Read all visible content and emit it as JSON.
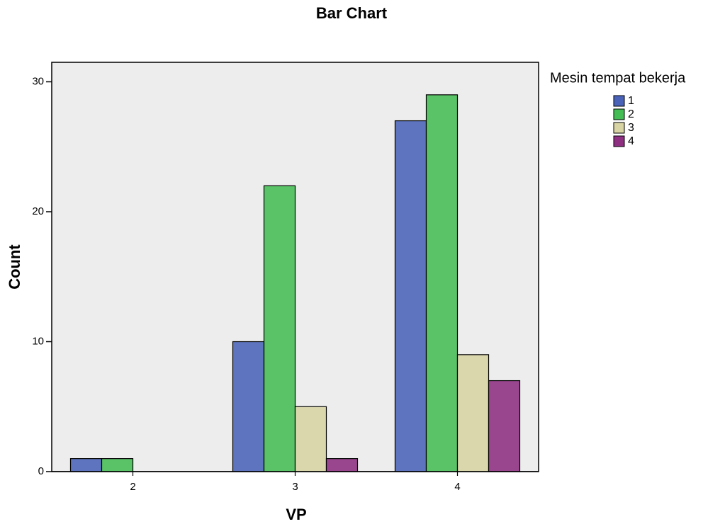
{
  "chart_data": {
    "type": "bar",
    "title": "Bar Chart",
    "x_label": "VP",
    "y_label": "Count",
    "categories": [
      "2",
      "3",
      "4"
    ],
    "series": [
      {
        "name": "1",
        "color": "#4a63b8",
        "values": [
          1,
          10,
          27
        ]
      },
      {
        "name": "2",
        "color": "#45bd55",
        "values": [
          1,
          22,
          29
        ]
      },
      {
        "name": "3",
        "color": "#d8d4a4",
        "values": [
          0,
          5,
          9
        ]
      },
      {
        "name": "4",
        "color": "#8e2f82",
        "values": [
          0,
          1,
          7
        ]
      }
    ],
    "ylim": [
      0,
      31.5
    ],
    "yticks": [
      0,
      10,
      20,
      30
    ],
    "legend_title": "Mesin tempat bekerja",
    "legend_position": "right"
  }
}
